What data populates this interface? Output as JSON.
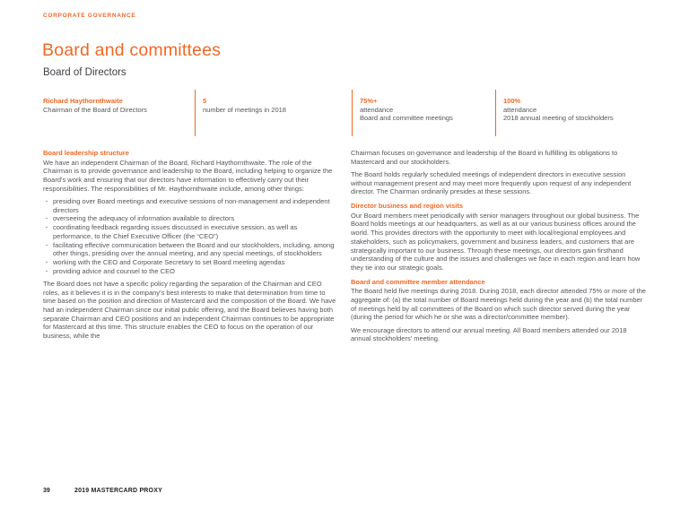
{
  "colors": {
    "accent": "#F26824",
    "body_text": "#54565A"
  },
  "header": {
    "eyebrow": "CORPORATE GOVERNANCE",
    "title": "Board and committees",
    "subtitle": "Board of Directors"
  },
  "stats": [
    {
      "value": "Richard Haythornthwaite",
      "line1": "Chairman of the Board of Directors",
      "line2": ""
    },
    {
      "value": "5",
      "line1": "number of meetings in 2018",
      "line2": ""
    },
    {
      "value": "75%+",
      "line1": "attendance",
      "line2": "Board and committee meetings"
    },
    {
      "value": "100%",
      "line1": "attendance",
      "line2": "2018 annual meeting of stockholders"
    }
  ],
  "left_column": {
    "heading": "Board leadership structure",
    "para1": "We have an independent Chairman of the Board, Richard Haythornthwaite. The role of the Chairman is to provide governance and leadership to the Board, including helping to organize the Board's work and ensuring that our directors have information to effectively carry out their responsibilities. The responsibilities of Mr. Haythornthwaite include, among other things:",
    "bullets": [
      "presiding over Board meetings and executive sessions of non-management and independent directors",
      "overseeing the adequacy of information available to directors",
      "coordinating feedback regarding issues discussed in executive session, as well as performance, to the Chief Executive Officer (the “CEO”)",
      "facilitating effective communication between the Board and our stockholders, including, among other things, presiding over the annual meeting, and any special meetings, of stockholders",
      "working with the CEO and Corporate Secretary to set Board meeting agendas",
      "providing advice and counsel to the CEO"
    ],
    "para2": "The Board does not have a specific policy regarding the separation of the Chairman and CEO roles, as it believes it is in the company's best interests to make that determination from time to time based on the position and direction of Mastercard and the composition of the Board. We have had an independent Chairman since our initial public offering, and the Board believes having both separate Chairman and CEO positions and an independent Chairman continues to be appropriate for Mastercard at this time. This structure enables the CEO to focus on the operation of our business, while the"
  },
  "right_column": {
    "para1": "Chairman focuses on governance and leadership of the Board in fulfilling its obligations to Mastercard and our stockholders.",
    "para2": "The Board holds regularly scheduled meetings of independent directors in executive session without management present and may meet more frequently upon request of any independent director. The Chairman ordinarily presides at these sessions.",
    "heading_region": "Director business and region visits",
    "para3": "Our Board members meet periodically with senior managers throughout our global business. The Board holds meetings at our headquarters, as well as at our various business offices around the world. This provides directors with the opportunity to meet with local/regional employees and stakeholders, such as policymakers, government and business leaders, and customers that are strategically important to our business. Through these meetings, our directors gain firsthand understanding of the culture and the issues and challenges we face in each region and learn how they tie into our strategic goals.",
    "heading_attendance": "Board and committee member attendance",
    "para4": "The Board held five meetings during 2018. During 2018, each director attended 75% or more of the aggregate of: (a) the total number of Board meetings held during the year and (b) the total number of meetings held by all committees of the Board on which such director served during the year (during the period for which he or she was a director/committee member).",
    "para5": "We encourage directors to attend our annual meeting. All Board members attended our 2018 annual stockholders' meeting."
  },
  "footer": {
    "page_number": "39",
    "label": "2019 MASTERCARD PROXY"
  }
}
